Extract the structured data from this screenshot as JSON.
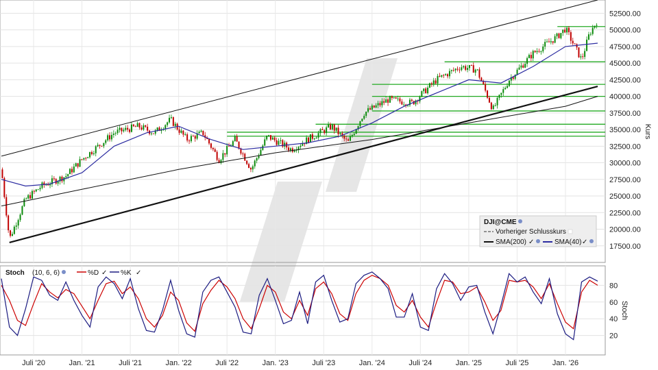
{
  "chart_data": [
    {
      "type": "candlestick",
      "legend": {
        "symbol": "DJI@CME",
        "prev_close": "Vorheriger Schlusskurs",
        "sma200": "SMA(200)",
        "sma40": "SMA(40)",
        "placement": "bottom-right"
      },
      "ylabel": "Kurs",
      "ylim": [
        15000,
        54500
      ],
      "y_ticks": [
        "52500.00",
        "50000.00",
        "47500.00",
        "45000.00",
        "42500.00",
        "40000.00",
        "37500.00",
        "35000.00",
        "32500.00",
        "30000.00",
        "27500.00",
        "25000.00",
        "22500.00",
        "20000.00",
        "17500.00"
      ],
      "y_tick_values": [
        52500,
        50000,
        47500,
        45000,
        42500,
        40000,
        37500,
        35000,
        32500,
        30000,
        27500,
        25000,
        22500,
        20000,
        17500
      ],
      "x_ticks": [
        "Juli '20",
        "Jan. '21",
        "Juli '21",
        "Jan. '22",
        "Juli '22",
        "Jan. '23",
        "Juli '23",
        "Jan. '24",
        "Juli '24",
        "Jan. '25",
        "Juli '25",
        "Jan. '26"
      ],
      "x_tick_dates": [
        "2020-07",
        "2021-01",
        "2021-07",
        "2022-01",
        "2022-07",
        "2023-01",
        "2023-07",
        "2024-01",
        "2024-07",
        "2025-01",
        "2025-07",
        "2026-01"
      ],
      "x_range": [
        "2020-03",
        "2026-05"
      ],
      "price_path": [
        {
          "date": "2020-03",
          "value": 29000
        },
        {
          "date": "2020-04",
          "value": 18500
        },
        {
          "date": "2020-06",
          "value": 24500
        },
        {
          "date": "2020-08",
          "value": 26500
        },
        {
          "date": "2020-11",
          "value": 28000
        },
        {
          "date": "2021-01",
          "value": 30500
        },
        {
          "date": "2021-03",
          "value": 32500
        },
        {
          "date": "2021-05",
          "value": 34500
        },
        {
          "date": "2021-08",
          "value": 35500
        },
        {
          "date": "2021-10",
          "value": 34500
        },
        {
          "date": "2021-12",
          "value": 36500
        },
        {
          "date": "2022-02",
          "value": 33500
        },
        {
          "date": "2022-04",
          "value": 34500
        },
        {
          "date": "2022-06",
          "value": 30500
        },
        {
          "date": "2022-08",
          "value": 33500
        },
        {
          "date": "2022-10",
          "value": 29000
        },
        {
          "date": "2022-12",
          "value": 34000
        },
        {
          "date": "2023-03",
          "value": 32000
        },
        {
          "date": "2023-05",
          "value": 33500
        },
        {
          "date": "2023-08",
          "value": 35500
        },
        {
          "date": "2023-10",
          "value": 33000
        },
        {
          "date": "2023-12",
          "value": 37500
        },
        {
          "date": "2024-03",
          "value": 39500
        },
        {
          "date": "2024-06",
          "value": 39000
        },
        {
          "date": "2024-09",
          "value": 42500
        },
        {
          "date": "2024-12",
          "value": 44500
        },
        {
          "date": "2025-02",
          "value": 44000
        },
        {
          "date": "2025-04",
          "value": 38000
        },
        {
          "date": "2025-06",
          "value": 42500
        },
        {
          "date": "2025-09",
          "value": 46500
        },
        {
          "date": "2025-12",
          "value": 49000
        },
        {
          "date": "2026-01",
          "value": 50200
        },
        {
          "date": "2026-03",
          "value": 45500
        },
        {
          "date": "2026-04",
          "value": 49500
        },
        {
          "date": "2026-05",
          "value": 51500
        }
      ],
      "sma40": [
        {
          "date": "2020-03",
          "value": 27500
        },
        {
          "date": "2020-06",
          "value": 26500
        },
        {
          "date": "2020-09",
          "value": 26800
        },
        {
          "date": "2021-01",
          "value": 28500
        },
        {
          "date": "2021-05",
          "value": 32500
        },
        {
          "date": "2021-09",
          "value": 34500
        },
        {
          "date": "2022-01",
          "value": 35500
        },
        {
          "date": "2022-05",
          "value": 33500
        },
        {
          "date": "2022-09",
          "value": 32000
        },
        {
          "date": "2023-01",
          "value": 32500
        },
        {
          "date": "2023-05",
          "value": 33000
        },
        {
          "date": "2023-09",
          "value": 34000
        },
        {
          "date": "2024-01",
          "value": 36000
        },
        {
          "date": "2024-05",
          "value": 38500
        },
        {
          "date": "2024-09",
          "value": 40500
        },
        {
          "date": "2025-01",
          "value": 42500
        },
        {
          "date": "2025-05",
          "value": 42000
        },
        {
          "date": "2025-09",
          "value": 44500
        },
        {
          "date": "2026-01",
          "value": 47500
        },
        {
          "date": "2026-05",
          "value": 48000
        }
      ],
      "sma200": [
        {
          "date": "2020-03",
          "value": 23500
        },
        {
          "date": "2021-01",
          "value": 26000
        },
        {
          "date": "2022-01",
          "value": 29000
        },
        {
          "date": "2023-01",
          "value": 31500
        },
        {
          "date": "2024-01",
          "value": 33500
        },
        {
          "date": "2025-01",
          "value": 36000
        },
        {
          "date": "2026-01",
          "value": 38500
        },
        {
          "date": "2026-05",
          "value": 40000
        }
      ],
      "trendlines": [
        {
          "from": {
            "date": "2020-04",
            "value": 18000
          },
          "to": {
            "date": "2026-05",
            "value": 41500
          },
          "style": "bold"
        },
        {
          "from": {
            "date": "2020-03",
            "value": 31000
          },
          "to": {
            "date": "2026-05",
            "value": 54500
          },
          "style": "thin"
        }
      ],
      "support_lines": [
        {
          "start": "2025-12",
          "value": 50500
        },
        {
          "start": "2024-10",
          "value": 45200
        },
        {
          "start": "2024-01",
          "value": 41800
        },
        {
          "start": "2024-01",
          "value": 40000
        },
        {
          "start": "2024-01",
          "value": 37800
        },
        {
          "start": "2023-06",
          "value": 35800
        },
        {
          "start": "2022-07",
          "value": 34600
        },
        {
          "start": "2022-07",
          "value": 34000
        }
      ]
    },
    {
      "type": "line",
      "title": "Stoch",
      "params": "(10, 6, 6)",
      "ylabel": "Stoch",
      "ylim": [
        0,
        100
      ],
      "y_ticks": [
        "80",
        "60",
        "40",
        "20"
      ],
      "y_tick_values": [
        80,
        60,
        40,
        20
      ],
      "series": [
        {
          "name": "%D",
          "color": "#cc0000",
          "values": [
            80,
            62,
            38,
            32,
            58,
            82,
            72,
            65,
            75,
            70,
            55,
            40,
            62,
            82,
            85,
            70,
            78,
            64,
            40,
            30,
            44,
            72,
            62,
            35,
            25,
            58,
            74,
            86,
            78,
            64,
            40,
            28,
            52,
            80,
            72,
            48,
            40,
            62,
            44,
            76,
            84,
            70,
            46,
            38,
            70,
            86,
            92,
            88,
            80,
            56,
            48,
            62,
            42,
            30,
            60,
            86,
            84,
            70,
            72,
            78,
            60,
            38,
            50,
            86,
            84,
            86,
            78,
            64,
            82,
            58,
            36,
            28,
            72,
            86,
            80
          ]
        },
        {
          "name": "%K",
          "color": "#1a1a80",
          "values": [
            88,
            30,
            20,
            52,
            90,
            86,
            68,
            62,
            84,
            62,
            44,
            30,
            78,
            90,
            82,
            64,
            88,
            52,
            26,
            24,
            50,
            86,
            50,
            22,
            18,
            72,
            86,
            90,
            72,
            54,
            24,
            22,
            68,
            88,
            62,
            34,
            38,
            72,
            34,
            84,
            92,
            62,
            36,
            40,
            82,
            92,
            96,
            88,
            76,
            42,
            42,
            70,
            30,
            26,
            76,
            94,
            82,
            62,
            78,
            80,
            48,
            22,
            56,
            94,
            84,
            90,
            72,
            58,
            88,
            46,
            22,
            15,
            84,
            90,
            85
          ]
        }
      ]
    }
  ],
  "colors": {
    "up": "#0a8a0a",
    "down": "#c00000",
    "sma40": "#2a2aa0",
    "sma200": "#111111",
    "support": "#22aa22",
    "stochD": "#cc0000",
    "stochK": "#1a1a80"
  }
}
